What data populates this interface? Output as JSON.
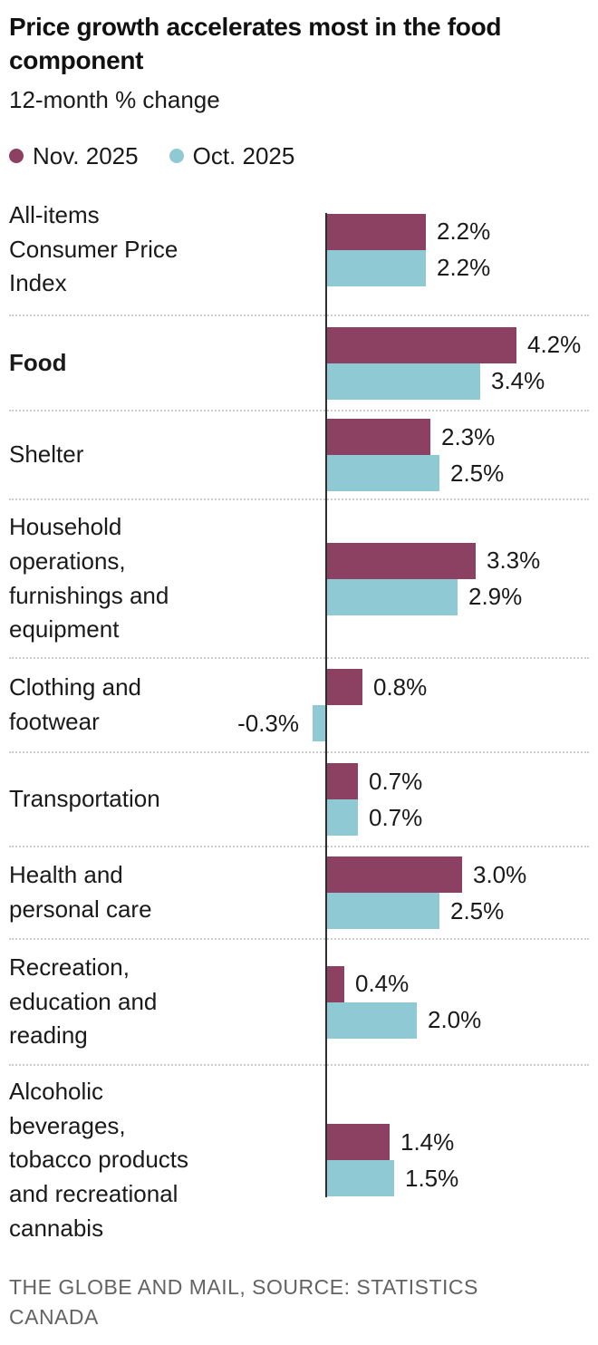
{
  "header": {
    "title": "Price growth accelerates most in the food\ncomponent",
    "subtitle": "12-month % change"
  },
  "legend": [
    {
      "label": "Nov. 2025",
      "color": "#8C4062"
    },
    {
      "label": "Oct. 2025",
      "color": "#8FCAD4"
    }
  ],
  "chart_data": {
    "type": "bar",
    "orientation": "horizontal",
    "title": "Price growth accelerates most in the food component",
    "subtitle": "12-month % change",
    "unit": "%",
    "legend_position": "top",
    "value_axis_visible": false,
    "baseline_at_zero": true,
    "categories": [
      "All-items\nConsumer Price\nIndex",
      "Food",
      "Shelter",
      "Household\noperations,\nfurnishings and\nequipment",
      "Clothing and\nfootwear",
      "Transportation",
      "Health and\npersonal care",
      "Recreation,\neducation and\nreading",
      "Alcoholic\nbeverages,\ntobacco products\nand recreational\ncannabis"
    ],
    "bold_category_index": 1,
    "series": [
      {
        "name": "Nov. 2025",
        "color": "#8C4062",
        "values": [
          2.2,
          4.2,
          2.3,
          3.3,
          0.8,
          0.7,
          3.0,
          0.4,
          1.4
        ],
        "labels": [
          "2.2%",
          "4.2%",
          "2.3%",
          "3.3%",
          "0.8%",
          "0.7%",
          "3.0%",
          "0.4%",
          "1.4%"
        ]
      },
      {
        "name": "Oct. 2025",
        "color": "#8FCAD4",
        "values": [
          2.2,
          3.4,
          2.5,
          2.9,
          -0.3,
          0.7,
          2.5,
          2.0,
          1.5
        ],
        "labels": [
          "2.2%",
          "3.4%",
          "2.5%",
          "2.9%",
          "-0.3%",
          "0.7%",
          "2.5%",
          "2.0%",
          "1.5%"
        ]
      }
    ]
  },
  "footer": {
    "source": "THE GLOBE AND MAIL, SOURCE: STATISTICS\nCANADA"
  }
}
